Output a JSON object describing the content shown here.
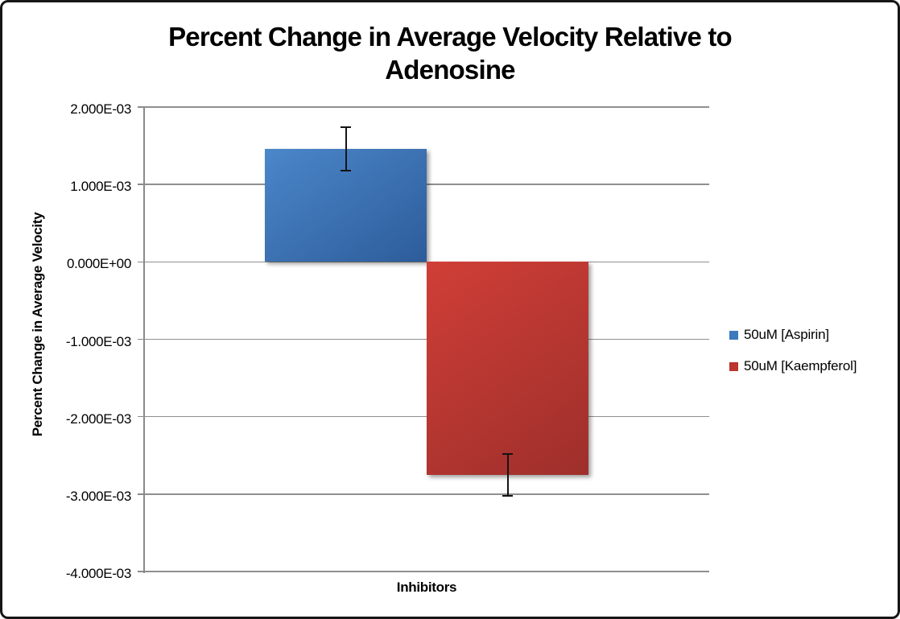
{
  "chart_data": {
    "type": "bar",
    "title": "Percent Change in Average Velocity Relative to Adenosine",
    "title_lines": [
      "Percent Change in Average Velocity Relative to",
      "Adenosine"
    ],
    "xlabel": "Inhibitors",
    "ylabel": "Percent Change in Average Velocity",
    "categories": [
      "50uM [Aspirin]",
      "50uM [Kaempferol]"
    ],
    "series": [
      {
        "name": "50uM [Aspirin]",
        "value": 0.00146,
        "error": 0.00029,
        "bar_gradient_top": "#4b87ca",
        "bar_gradient_bottom": "#2d5c9a",
        "legend_color": "#3c79bd"
      },
      {
        "name": "50uM [Kaempferol]",
        "value": -0.00275,
        "error": 0.00028,
        "bar_gradient_top": "#d03e37",
        "bar_gradient_bottom": "#9e2f2b",
        "legend_color": "#bc342e"
      }
    ],
    "ylim": [
      -0.004,
      0.002
    ],
    "yticks": [
      {
        "value": 0.002,
        "label": "2.000E-03"
      },
      {
        "value": 0.001,
        "label": "1.000E-03"
      },
      {
        "value": 0.0,
        "label": "0.000E+00"
      },
      {
        "value": -0.001,
        "label": "-1.000E-03"
      },
      {
        "value": -0.002,
        "label": "-2.000E-03"
      },
      {
        "value": -0.003,
        "label": "-3.000E-03"
      },
      {
        "value": -0.004,
        "label": "-4.000E-03"
      }
    ],
    "grid": true,
    "legend_position": "right",
    "error_bar_color": "#141414",
    "gridline_color": "#8f8f8f",
    "axis_line_color": "#8a8a8a"
  }
}
